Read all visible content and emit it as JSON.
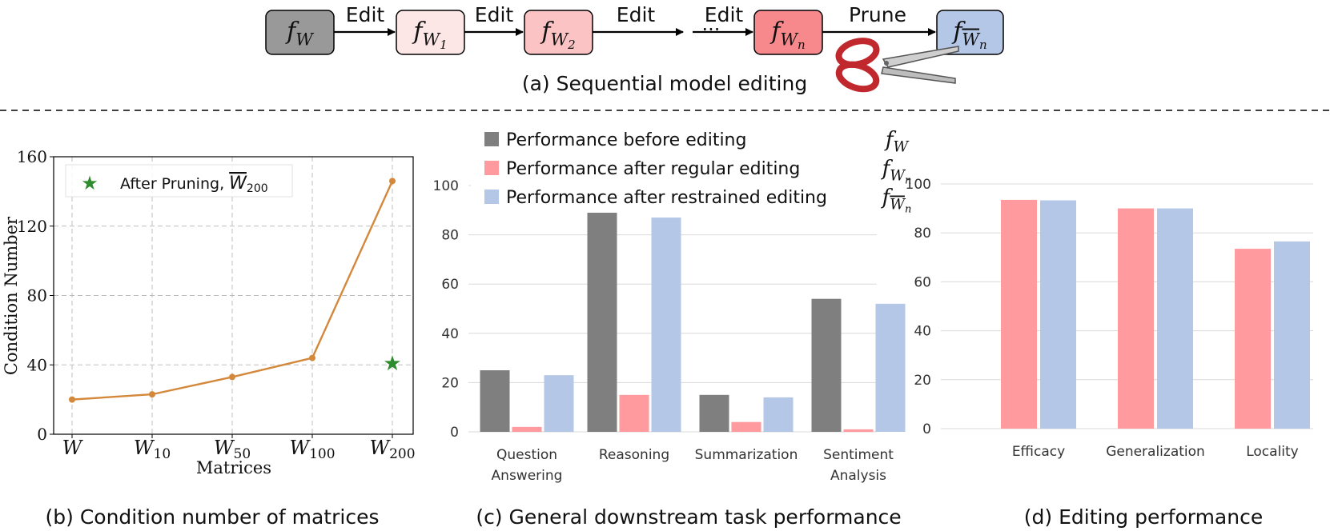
{
  "figure_a": {
    "caption": "(a) Sequential model editing",
    "nodes": [
      {
        "base": "f",
        "sub": "W",
        "color": "#999999"
      },
      {
        "base": "f",
        "sub": "W",
        "subsub": "1",
        "color": "#fde6e6"
      },
      {
        "base": "f",
        "sub": "W",
        "subsub": "2",
        "color": "#fbc3c3"
      },
      {
        "base": "f",
        "sub": "W",
        "subsub": "n",
        "color": "#f7898c"
      },
      {
        "base": "f",
        "sub": "W",
        "subsub": "n",
        "overline": true,
        "color": "#b4c7e7"
      }
    ],
    "edge_labels": [
      "Edit",
      "Edit",
      "Edit",
      "Edit",
      "Prune"
    ],
    "ellipsis": "···",
    "scissors": "scissors-icon"
  },
  "chart_data": [
    {
      "type": "line",
      "caption": "(b) Condition number of matrices",
      "xlabel": "Matrices",
      "ylabel": "Condition Number",
      "ylim": [
        0,
        160
      ],
      "yticks": [
        0,
        40,
        80,
        120,
        160
      ],
      "categories": [
        {
          "base": "W",
          "sub": ""
        },
        {
          "base": "W",
          "sub": "10"
        },
        {
          "base": "W",
          "sub": "50"
        },
        {
          "base": "W",
          "sub": "100"
        },
        {
          "base": "W",
          "sub": "200"
        }
      ],
      "series": [
        {
          "values": [
            20,
            23,
            33,
            44,
            146
          ],
          "color": "#d4883b"
        }
      ],
      "marker_point": {
        "category_index": 4,
        "value": 41,
        "color": "#2e8b2e"
      },
      "legend": {
        "label": "After Pruning, ",
        "symbol_base": "W",
        "symbol_sub": "200",
        "placement": "top-left"
      },
      "grid": true
    },
    {
      "type": "bar",
      "caption": "(c) General downstream task performance",
      "ylim": [
        0,
        100
      ],
      "yticks": [
        0,
        20,
        40,
        60,
        80,
        100
      ],
      "categories": [
        [
          "Question",
          "Answering"
        ],
        [
          "Reasoning"
        ],
        [
          "Summarization"
        ],
        [
          "Sentiment",
          "Analysis"
        ]
      ],
      "series": [
        {
          "name": "Performance before editing",
          "symbol": {
            "base": "f",
            "sub": "W"
          },
          "color": "#7f7f7f",
          "values": [
            25,
            89,
            15,
            54
          ]
        },
        {
          "name": "Performance after regular editing",
          "symbol": {
            "base": "f",
            "sub": "W",
            "subsub": "n"
          },
          "color": "#ff9a9e",
          "values": [
            2,
            15,
            4,
            1
          ]
        },
        {
          "name": "Performance after restrained editing",
          "symbol": {
            "base": "f",
            "sub": "W",
            "subsub": "n",
            "overline": true
          },
          "color": "#b4c7e7",
          "values": [
            23,
            87,
            14,
            52
          ]
        }
      ],
      "legend_placement": "top",
      "grid": true
    },
    {
      "type": "bar",
      "caption": "(d) Editing performance",
      "ylim": [
        0,
        100
      ],
      "yticks": [
        0,
        20,
        40,
        60,
        80,
        100
      ],
      "categories": [
        [
          "Efficacy"
        ],
        [
          "Generalization"
        ],
        [
          "Locality"
        ]
      ],
      "series": [
        {
          "color": "#ff9a9e",
          "values": [
            93.5,
            90,
            73.5
          ]
        },
        {
          "color": "#b4c7e7",
          "values": [
            93.3,
            90,
            76.5
          ]
        }
      ],
      "grid": true
    }
  ]
}
